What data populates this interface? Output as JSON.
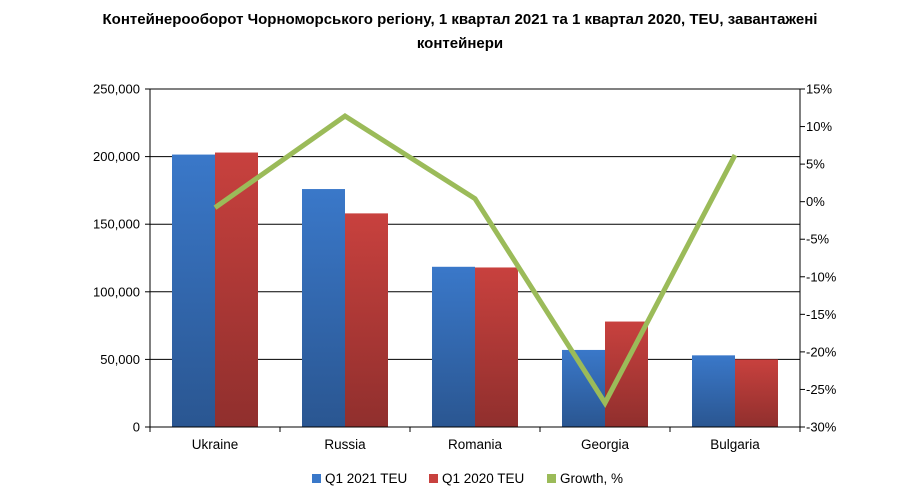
{
  "chart_data": {
    "type": "bar",
    "title": "Контейнерооборот Чорноморського регіону, 1 квартал 2021 та 1 квартал 2020, TEU, завантажені контейнери",
    "categories": [
      "Ukraine",
      "Russia",
      "Romania",
      "Georgia",
      "Bulgaria"
    ],
    "series": [
      {
        "name": "Q1 2021 TEU",
        "kind": "bar",
        "axis": "left",
        "color": "#3a78c9",
        "values": [
          201500,
          176000,
          118500,
          57000,
          53000
        ]
      },
      {
        "name": "Q1 2020 TEU",
        "kind": "bar",
        "axis": "left",
        "color": "#c8413e",
        "values": [
          203000,
          158000,
          118000,
          78000,
          50000
        ]
      },
      {
        "name": "Growth, %",
        "kind": "line",
        "axis": "right",
        "color": "#9bbb59",
        "values": [
          -0.8,
          11.4,
          0.4,
          -26.8,
          6.2
        ]
      }
    ],
    "ylim_left": [
      0,
      250000
    ],
    "ylim_right": [
      -30,
      15
    ],
    "yticks_left": [
      "0",
      "50,000",
      "100,000",
      "150,000",
      "200,000",
      "250,000"
    ],
    "yticks_right": [
      "-30%",
      "-25%",
      "-20%",
      "-15%",
      "-10%",
      "-5%",
      "0%",
      "5%",
      "10%",
      "15%"
    ],
    "grid": true,
    "legend_position": "bottom"
  }
}
